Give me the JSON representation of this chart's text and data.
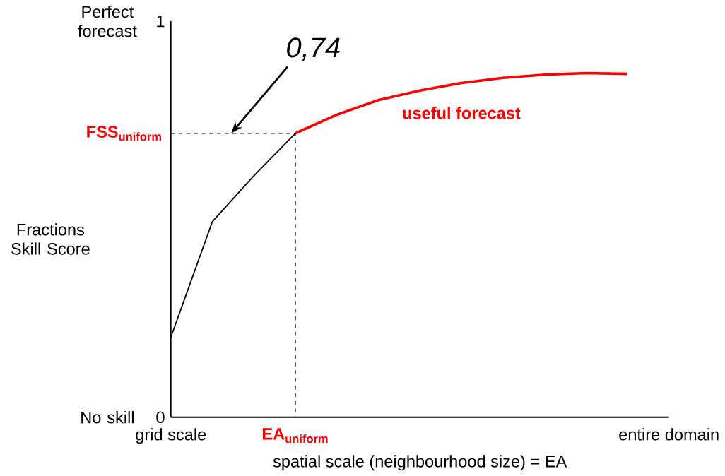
{
  "chart_data": {
    "type": "line",
    "xlabel": "spatial scale (neighbourhood size) = EA",
    "ylabel": "Fractions Skill Score",
    "categories": [
      "grid scale",
      null,
      null,
      "EA$_{uniform}$",
      null,
      null,
      null,
      null,
      null,
      null,
      null,
      null,
      "entire domain"
    ],
    "ylim": [
      0,
      1
    ],
    "yticks": [
      {
        "value": 0,
        "label": "0"
      },
      {
        "value": 1,
        "label": "1"
      }
    ],
    "series": [
      {
        "color": "#000000",
        "values": [
          0.202,
          0.494,
          0.61,
          0.717,
          null,
          null,
          null,
          null,
          null,
          null,
          null,
          null,
          null
        ]
      },
      {
        "name": "useful forecast",
        "color": "#ff0000",
        "values": [
          null,
          null,
          null,
          0.717,
          0.764,
          0.801,
          0.825,
          0.844,
          0.857,
          0.865,
          0.869,
          0.867,
          null
        ]
      }
    ],
    "ref_lines": [
      {
        "axis": "y",
        "value": 0.717,
        "label": "FSS$_{uniform}$",
        "line_style": "dashed"
      }
    ],
    "annotations": [
      "Perfect forecast",
      "No skill",
      "0,74"
    ],
    "legend": false,
    "marker": "none",
    "line_style": "solid",
    "grid": false
  }
}
